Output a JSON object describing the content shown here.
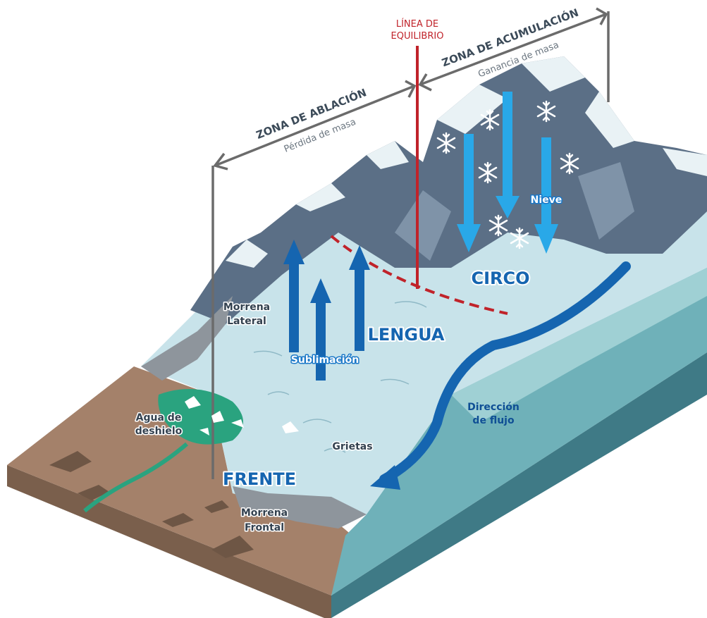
{
  "equilibrium_line": {
    "lines": [
      "LÍNEA DE",
      "EQUILIBRIO"
    ]
  },
  "ablation_zone": {
    "title": "ZONA DE ABLACIÓN",
    "subtitle": "Pérdida de masa"
  },
  "accumulation_zone": {
    "title": "ZONA DE ACUMULACIÓN",
    "subtitle": "Ganancia de masa"
  },
  "labels": {
    "lateral_moraine": [
      "Morrena",
      "Lateral"
    ],
    "sublimation": "Sublimación",
    "tongue": "LENGUA",
    "cirque": "CIRCO",
    "snow": "Nieve",
    "meltwater": [
      "Agua de",
      "deshielo"
    ],
    "crevasses": "Grietas",
    "front": "FRENTE",
    "frontal_moraine": [
      "Morrena",
      "Frontal"
    ],
    "flow_direction": [
      "Dirección",
      "de flujo"
    ]
  }
}
